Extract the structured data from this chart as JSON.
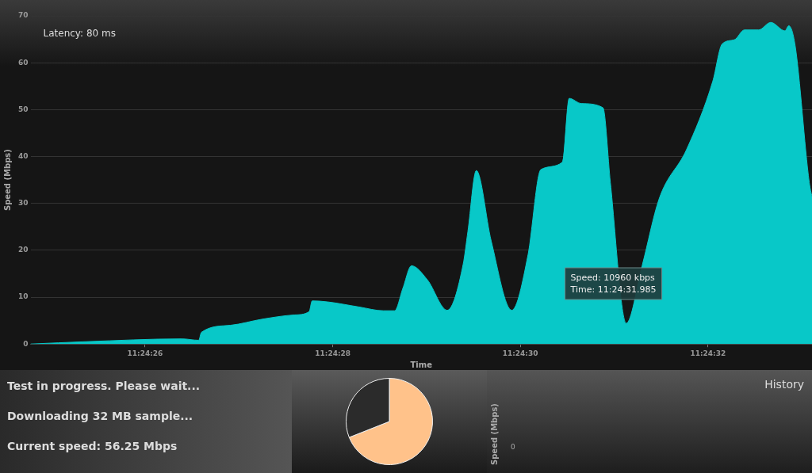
{
  "chart_data": [
    {
      "type": "area",
      "subtitle": "Latency: 80 ms",
      "xlabel": "Time",
      "ylabel": "Speed (Mbps)",
      "x": [
        11.406883,
        11.407047,
        11.407331,
        11.407381,
        11.407389,
        11.407475,
        11.407569,
        11.407664,
        11.407708,
        11.407717,
        11.407761,
        11.407856,
        11.407928,
        11.407961,
        11.407986,
        11.408011,
        11.408058,
        11.408117,
        11.408164,
        11.408178,
        11.408203,
        11.408247,
        11.408308,
        11.408356,
        11.408394,
        11.408458,
        11.408478,
        11.408514,
        11.408578,
        11.4086,
        11.408647,
        11.408694,
        11.408744,
        11.408825,
        11.408903,
        11.408931,
        11.408967,
        11.408997,
        11.409039,
        11.409075,
        11.409117,
        11.409128,
        11.409147,
        11.409189,
        11.409197
      ],
      "series": [
        {
          "color": "#08c8c8",
          "values": [
            0,
            0.5,
            1.1,
            0.8,
            2.5,
            4,
            5.3,
            6.2,
            6.9,
            9.2,
            9,
            7.9,
            7.1,
            7.1,
            12,
            16.7,
            13.7,
            7.2,
            17,
            24,
            37,
            22,
            7.2,
            19,
            37.2,
            38.8,
            52.4,
            51.3,
            50.4,
            34.4,
            4.4,
            16.7,
            30.9,
            41.4,
            56,
            64,
            64.9,
            67,
            67,
            68.6,
            66.8,
            67.9,
            63.7,
            34.4,
            31.4
          ]
        }
      ],
      "xlim": [
        11.406883,
        11.409197
      ],
      "xticks": [
        {
          "value": 11.407222,
          "label": "11:24:26"
        },
        {
          "value": 11.407778,
          "label": "11:24:28"
        },
        {
          "value": 11.408333,
          "label": "11:24:30"
        },
        {
          "value": 11.408889,
          "label": "11:24:32"
        }
      ],
      "ylim": [
        0,
        70
      ],
      "yticks": [
        0,
        10,
        20,
        30,
        40,
        50,
        60,
        70
      ],
      "grid": "y",
      "marker": "none",
      "annotations": [
        "Speed: 10960 kbps\nTime: 11:24:31.985"
      ]
    },
    {
      "type": "other",
      "annotations": [
        "Test in progress. Please wait...",
        "Downloading 32 MB sample...",
        "Current speed: 56.25 Mbps"
      ]
    },
    {
      "type": "pie",
      "categories": [
        null,
        null
      ],
      "values": [
        69,
        31
      ],
      "colors": [
        "#ffc28a",
        "#2b2b2b"
      ]
    },
    {
      "type": "other",
      "title": "History",
      "ylabel": "Speed (Mbps)",
      "annotations": [
        "0"
      ]
    }
  ]
}
